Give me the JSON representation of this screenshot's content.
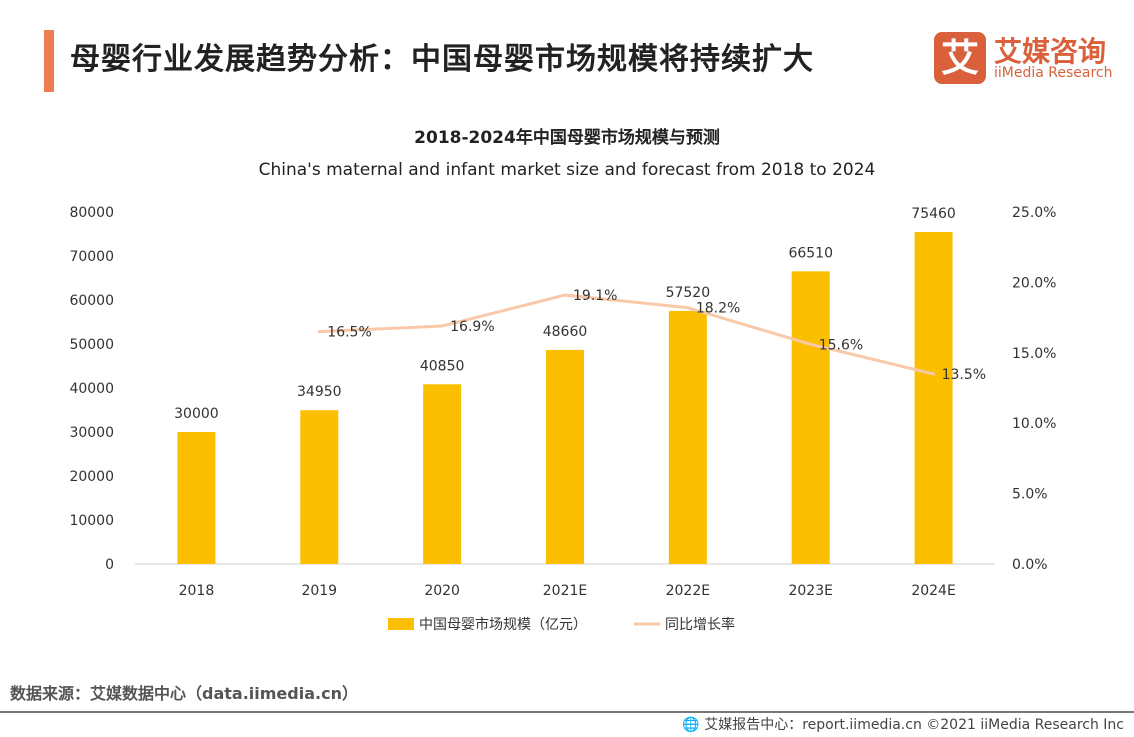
{
  "header": {
    "title": "母婴行业发展趋势分析：中国母婴市场规模将持续扩大"
  },
  "logo": {
    "cn": "艾媒咨询",
    "en": "iiMedia Research",
    "mark": "艾"
  },
  "chart_data": {
    "type": "bar+line",
    "title": "2018-2024年中国母婴市场规模与预测",
    "subtitle": "China's maternal and infant market size and forecast from 2018 to 2024",
    "categories": [
      "2018",
      "2019",
      "2020",
      "2021E",
      "2022E",
      "2023E",
      "2024E"
    ],
    "series": [
      {
        "name": "中国母婴市场规模（亿元）",
        "type": "bar",
        "axis": "left",
        "color": "#fbbf00",
        "values": [
          30000,
          34950,
          40850,
          48660,
          57520,
          66510,
          75460
        ],
        "labels": [
          "30000",
          "34950",
          "40850",
          "48660",
          "57520",
          "66510",
          "75460"
        ]
      },
      {
        "name": "同比增长率",
        "type": "line",
        "axis": "right",
        "color": "#f8c9a8",
        "values": [
          null,
          16.5,
          16.9,
          19.1,
          18.2,
          15.6,
          13.5
        ],
        "labels": [
          "",
          "16.5%",
          "16.9%",
          "19.1%",
          "18.2%",
          "15.6%",
          "13.5%"
        ]
      }
    ],
    "ylim_left": [
      0,
      80000
    ],
    "yticks_left": [
      "0",
      "10000",
      "20000",
      "30000",
      "40000",
      "50000",
      "60000",
      "70000",
      "80000"
    ],
    "ylim_right": [
      0,
      25
    ],
    "yticks_right": [
      "0.0%",
      "5.0%",
      "10.0%",
      "15.0%",
      "20.0%",
      "25.0%"
    ],
    "grid": false,
    "legend": "bottom"
  },
  "footer": {
    "source": "数据来源：艾媒数据中心（data.iimedia.cn）",
    "copyright": "艾媒报告中心：report.iimedia.cn   ©2021  iiMedia Research  Inc"
  }
}
